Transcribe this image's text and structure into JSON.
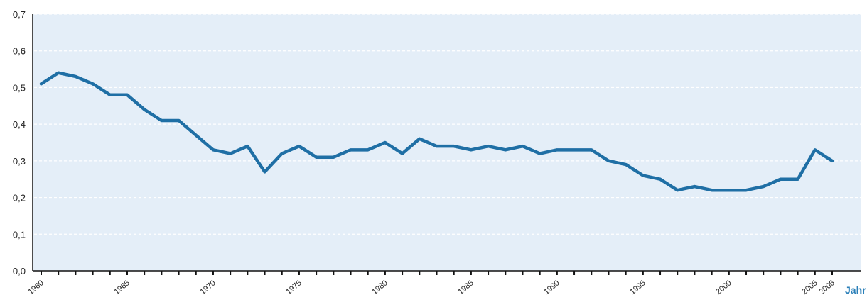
{
  "chart_data": {
    "type": "line",
    "x": [
      1960,
      1961,
      1962,
      1963,
      1964,
      1965,
      1966,
      1967,
      1968,
      1969,
      1970,
      1971,
      1972,
      1973,
      1974,
      1975,
      1976,
      1977,
      1978,
      1979,
      1980,
      1981,
      1982,
      1983,
      1984,
      1985,
      1986,
      1987,
      1988,
      1989,
      1990,
      1991,
      1992,
      1993,
      1994,
      1995,
      1996,
      1997,
      1998,
      1999,
      2000,
      2001,
      2002,
      2003,
      2004,
      2005,
      2006
    ],
    "series": [
      {
        "values": [
          0.51,
          0.54,
          0.53,
          0.51,
          0.48,
          0.48,
          0.44,
          0.41,
          0.41,
          0.37,
          0.33,
          0.32,
          0.34,
          0.27,
          0.32,
          0.34,
          0.31,
          0.31,
          0.33,
          0.33,
          0.35,
          0.32,
          0.36,
          0.34,
          0.34,
          0.33,
          0.34,
          0.33,
          0.34,
          0.32,
          0.33,
          0.33,
          0.33,
          0.3,
          0.29,
          0.26,
          0.25,
          0.22,
          0.23,
          0.22,
          0.22,
          0.22,
          0.23,
          0.25,
          0.25,
          0.33,
          0.3
        ]
      }
    ],
    "xlabel": "Jahr",
    "ylabel": "",
    "ylim": [
      0,
      0.7
    ],
    "y_ticks": [
      "0,0",
      "0,1",
      "0,2",
      "0,3",
      "0,4",
      "0,5",
      "0,6",
      "0,7"
    ],
    "x_tick_labels": [
      "1960",
      "1965",
      "1970",
      "1975",
      "1980",
      "1985",
      "1990",
      "1995",
      "2000",
      "2005",
      "2006"
    ],
    "grid": "horizontal dashed",
    "colors": {
      "line": "#1f6fa5",
      "plot_background": "#e4eef8",
      "grid": "#ffffff",
      "axis": "#111111",
      "unit_label": "#2a7fb8"
    }
  }
}
